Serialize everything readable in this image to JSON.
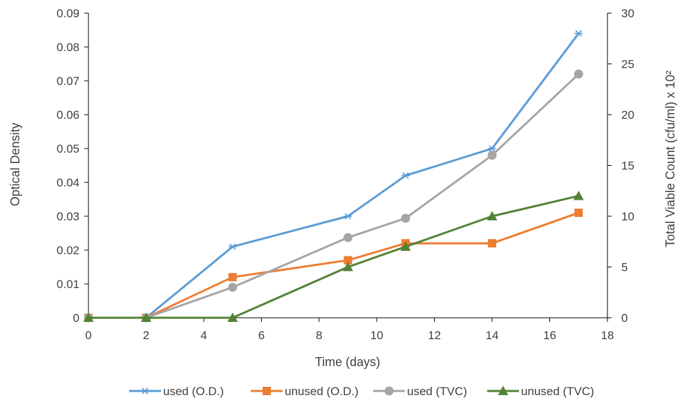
{
  "chart_data": {
    "type": "line",
    "title": "",
    "xlabel": "Time (days)",
    "ylabel": "Optical Density",
    "y2label": "Total Viable Count (cfu/ml) x 10²",
    "xlim": [
      0,
      18
    ],
    "ylim": [
      0,
      0.09
    ],
    "y2lim": [
      0,
      30
    ],
    "x_ticks": [
      "0",
      "2",
      "4",
      "6",
      "8",
      "10",
      "12",
      "14",
      "16",
      "18"
    ],
    "y_ticks": [
      "0",
      "0.01",
      "0.02",
      "0.03",
      "0.04",
      "0.05",
      "0.06",
      "0.07",
      "0.08",
      "0.09"
    ],
    "y2_ticks": [
      "0",
      "5",
      "10",
      "15",
      "20",
      "25",
      "30"
    ],
    "grid": false,
    "legend_position": "bottom",
    "series": [
      {
        "name": "used (O.D.)",
        "axis": "left",
        "color": "#5B9BD5",
        "marker": "asterisk",
        "x": [
          0,
          2,
          5,
          9,
          11,
          14,
          17
        ],
        "y": [
          0,
          0,
          0.021,
          0.03,
          0.042,
          0.05,
          0.084
        ]
      },
      {
        "name": "unused (O.D.)",
        "axis": "left",
        "color": "#ED7D31",
        "marker": "square",
        "x": [
          0,
          2,
          5,
          9,
          11,
          14,
          17
        ],
        "y": [
          0,
          0,
          0.012,
          0.017,
          0.022,
          0.022,
          0.031
        ]
      },
      {
        "name": "used (TVC)",
        "axis": "right",
        "color": "#A5A5A5",
        "marker": "circle",
        "x": [
          0,
          2,
          5,
          9,
          11,
          14,
          17
        ],
        "y": [
          0,
          0,
          3,
          7.9,
          9.8,
          16,
          24
        ]
      },
      {
        "name": "unused (TVC)",
        "axis": "right",
        "color": "#548235",
        "marker": "triangle",
        "x": [
          0,
          2,
          5,
          9,
          11,
          14,
          17
        ],
        "y": [
          0,
          0,
          0,
          5,
          7,
          10,
          12
        ]
      }
    ]
  }
}
